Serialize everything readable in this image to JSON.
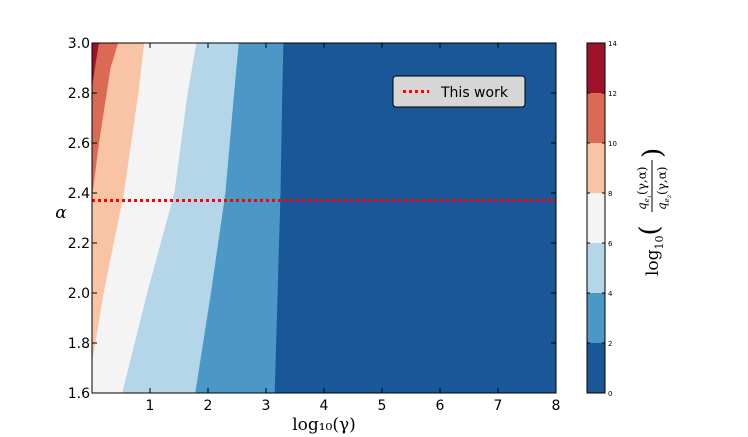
{
  "chart_data": {
    "type": "contour",
    "xlabel": "log₁₀(γ)",
    "ylabel": "α",
    "xlim": [
      0,
      8
    ],
    "ylim": [
      1.6,
      3.0
    ],
    "x_ticks": [
      "1",
      "2",
      "3",
      "4",
      "5",
      "6",
      "7",
      "8"
    ],
    "y_ticks": [
      "1.6",
      "1.8",
      "2.0",
      "2.2",
      "2.4",
      "2.6",
      "2.8",
      "3.0"
    ],
    "levels": [
      0,
      2,
      4,
      6,
      8,
      10,
      12,
      14
    ],
    "level_colors": [
      "#1a5799",
      "#4b98c7",
      "#b5d6e8",
      "#f4f4f4",
      "#f9c3a5",
      "#db6a55",
      "#9e132b"
    ],
    "contour_boundaries": [
      {
        "level": 2,
        "points": [
          [
            3.15,
            1.6
          ],
          [
            3.2,
            2.0
          ],
          [
            3.25,
            2.4
          ],
          [
            3.28,
            2.8
          ],
          [
            3.3,
            3.0
          ]
        ]
      },
      {
        "level": 4,
        "points": [
          [
            1.78,
            1.6
          ],
          [
            2.05,
            2.0
          ],
          [
            2.3,
            2.4
          ],
          [
            2.45,
            2.8
          ],
          [
            2.53,
            3.0
          ]
        ]
      },
      {
        "level": 6,
        "points": [
          [
            0.52,
            1.6
          ],
          [
            0.95,
            2.0
          ],
          [
            1.42,
            2.4
          ],
          [
            1.65,
            2.8
          ],
          [
            1.8,
            3.0
          ]
        ]
      },
      {
        "level": 8,
        "points": [
          [
            0,
            1.72
          ],
          [
            0.2,
            2.0
          ],
          [
            0.55,
            2.4
          ],
          [
            0.8,
            2.8
          ],
          [
            0.9,
            3.0
          ]
        ]
      },
      {
        "level": 10,
        "points": [
          [
            0,
            2.38
          ],
          [
            0.12,
            2.6
          ],
          [
            0.32,
            2.9
          ],
          [
            0.45,
            3.0
          ]
        ]
      },
      {
        "level": 12,
        "points": [
          [
            0,
            2.82
          ],
          [
            0.05,
            2.9
          ],
          [
            0.12,
            3.0
          ]
        ]
      }
    ],
    "reference_line": {
      "alpha": 2.37,
      "label": "This work",
      "color": "#ff0000",
      "style": "dotted"
    },
    "legend_position": "top-right",
    "colorbar": {
      "ticks": [
        "0",
        "2",
        "4",
        "6",
        "8",
        "10",
        "12",
        "14"
      ],
      "label": "log₁₀(q_{e₁}(γ,α) / q_{e₂}(γ,α))"
    }
  }
}
